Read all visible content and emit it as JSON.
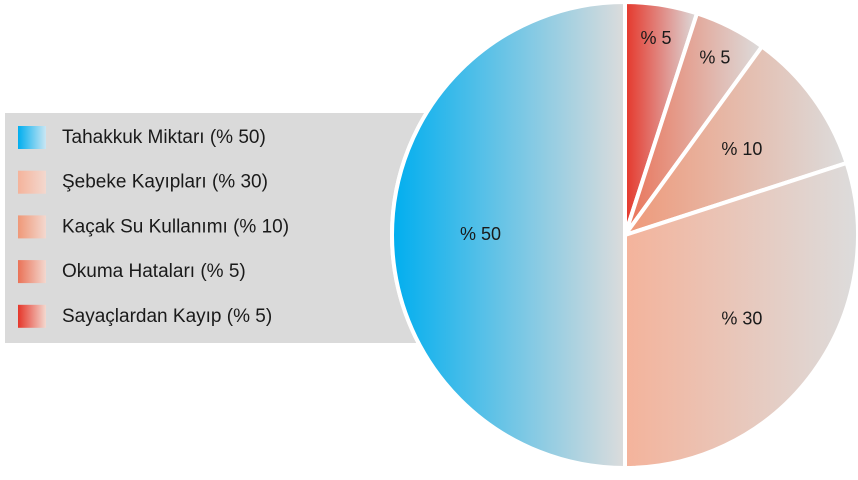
{
  "chart_data": {
    "type": "pie",
    "categories": [
      "Tahakkuk Miktarı (% 50)",
      "Şebeke Kayıpları (% 30)",
      "Kaçak Su Kullanımı (% 10)",
      "Okuma Hataları (% 5)",
      "Sayaçlardan Kayıp (% 5)"
    ],
    "values": [
      50,
      30,
      10,
      5,
      5
    ],
    "value_labels": [
      "% 50",
      "% 30",
      "% 10",
      "% 5",
      "% 5"
    ],
    "colors": [
      "#00aeef",
      "#f4b39b",
      "#ef9878",
      "#ea7257",
      "#e5362a"
    ]
  }
}
